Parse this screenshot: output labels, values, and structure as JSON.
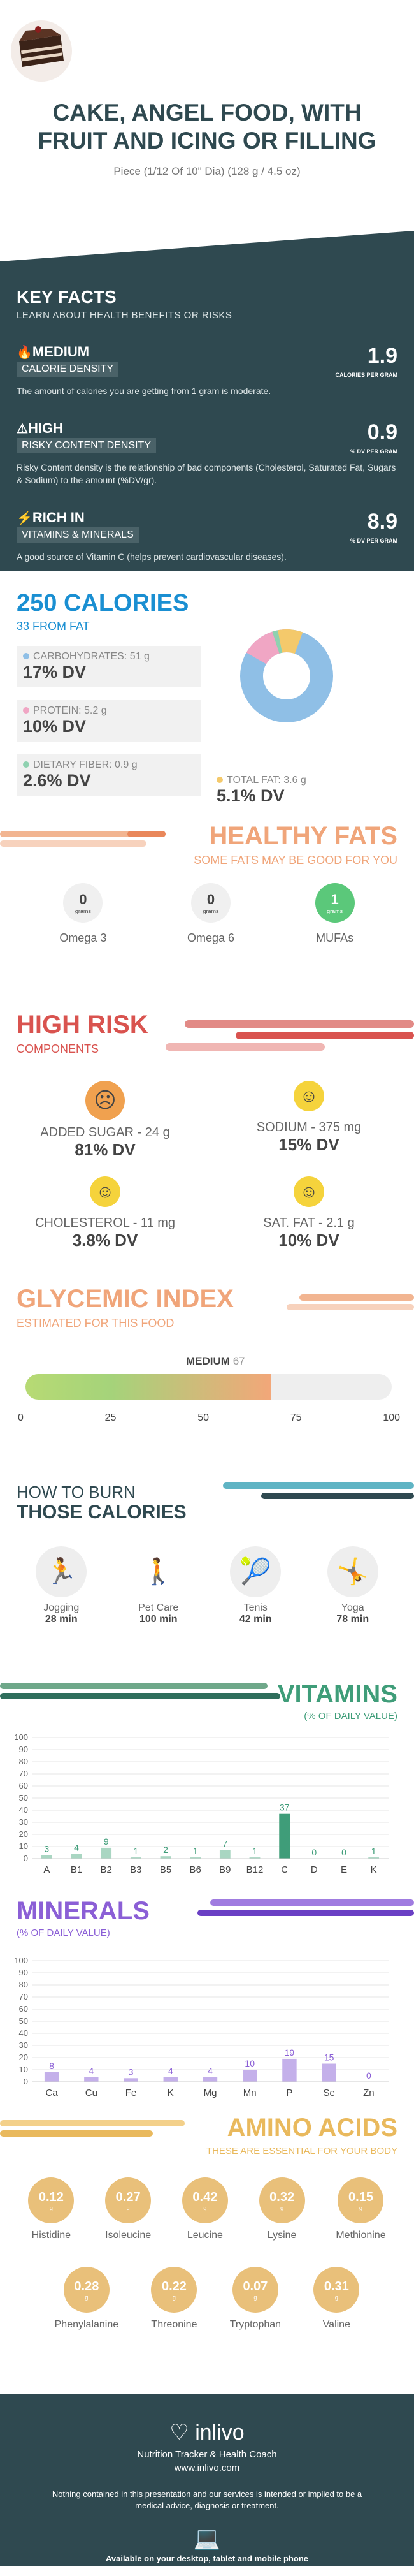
{
  "header": {
    "title": "CAKE, ANGEL FOOD, WITH FRUIT AND ICING OR FILLING",
    "serving": "Piece (1/12 Of 10\" Dia) (128 g / 4.5 oz)"
  },
  "key_facts": {
    "title": "KEY FACTS",
    "subtitle": "LEARN ABOUT HEALTH BENEFITS OR RISKS",
    "items": [
      {
        "level": "MEDIUM",
        "label": "CALORIE DENSITY",
        "value": "1.9",
        "unit": "CALORIES PER GRAM",
        "desc": "The amount of calories you are getting from 1 gram is moderate."
      },
      {
        "level": "HIGH",
        "label": "RISKY CONTENT DENSITY",
        "value": "0.9",
        "unit": "% DV PER GRAM",
        "desc": "Risky Content density is the relationship of bad components (Cholesterol, Saturated Fat, Sugars & Sodium) to the amount (%DV/gr)."
      },
      {
        "level": "RICH  IN",
        "label": "VITAMINS & MINERALS",
        "value": "8.9",
        "unit": "% DV PER GRAM",
        "desc": "A good source of Vitamin C (helps prevent cardiovascular diseases)."
      }
    ]
  },
  "calories": {
    "title": "250 CALORIES",
    "subtitle": "33 FROM FAT",
    "items": [
      {
        "label": "CARBOHYDRATES: 51 g",
        "dv": "17% DV",
        "color": "#8fbfe6"
      },
      {
        "label": "PROTEIN: 5.2 g",
        "dv": "10% DV",
        "color": "#f0a6c4"
      },
      {
        "label": "DIETARY FIBER: 0.9 g",
        "dv": "2.6% DV",
        "color": "#8fd1b0"
      },
      {
        "label": "TOTAL FAT: 3.6 g",
        "dv": "5.1% DV",
        "color": "#f4c96b"
      }
    ]
  },
  "healthy_fats": {
    "title": "HEALTHY FATS",
    "subtitle": "SOME FATS MAY BE GOOD FOR YOU",
    "unit": "grams",
    "items": [
      {
        "name": "Omega 3",
        "value": "0"
      },
      {
        "name": "Omega 6",
        "value": "0"
      },
      {
        "name": "MUFAs",
        "value": "1"
      }
    ]
  },
  "high_risk": {
    "title": "HIGH RISK",
    "subtitle": "COMPONENTS",
    "items": [
      {
        "label": "ADDED SUGAR - 24 g",
        "dv": "81% DV"
      },
      {
        "label": "SODIUM - 375 mg",
        "dv": "15% DV"
      },
      {
        "label": "CHOLESTEROL - 11 mg",
        "dv": "3.8% DV"
      },
      {
        "label": "SAT. FAT - 2.1 g",
        "dv": "10% DV"
      }
    ]
  },
  "glycemic": {
    "title": "GLYCEMIC INDEX",
    "subtitle": "ESTIMATED FOR THIS FOOD",
    "level": "MEDIUM",
    "value": "67",
    "ticks": [
      "0",
      "25",
      "50",
      "75",
      "100"
    ]
  },
  "burn": {
    "title1": "HOW TO BURN",
    "title2": "THOSE CALORIES",
    "items": [
      {
        "name": "Jogging",
        "time": "28 min"
      },
      {
        "name": "Pet Care",
        "time": "100 min"
      },
      {
        "name": "Tenis",
        "time": "42 min"
      },
      {
        "name": "Yoga",
        "time": "78 min"
      }
    ]
  },
  "vitamins": {
    "title": "VITAMINS",
    "subtitle": "(% OF DAILY VALUE)"
  },
  "minerals": {
    "title": "MINERALS",
    "subtitle": "(% OF DAILY VALUE)"
  },
  "chart_data": [
    {
      "type": "bar",
      "title": "VITAMINS",
      "categories": [
        "A",
        "B1",
        "B2",
        "B3",
        "B5",
        "B6",
        "B9",
        "B12",
        "C",
        "D",
        "E",
        "K"
      ],
      "values": [
        3,
        4,
        9,
        1,
        2,
        1,
        7,
        1,
        37,
        0,
        0,
        1
      ],
      "ylim": [
        0,
        100
      ],
      "yticks": [
        0,
        10,
        20,
        30,
        40,
        50,
        60,
        70,
        80,
        90,
        100
      ]
    },
    {
      "type": "bar",
      "title": "MINERALS",
      "categories": [
        "Ca",
        "Cu",
        "Fe",
        "K",
        "Mg",
        "Mn",
        "P",
        "Se",
        "Zn"
      ],
      "values": [
        8,
        4,
        3,
        4,
        4,
        10,
        19,
        15,
        0
      ],
      "ylim": [
        0,
        100
      ],
      "yticks": [
        0,
        10,
        20,
        30,
        40,
        50,
        60,
        70,
        80,
        90,
        100
      ]
    }
  ],
  "amino": {
    "title": "AMINO ACIDS",
    "subtitle": "THESE ARE ESSENTIAL FOR YOUR BODY",
    "unit": "g",
    "row1": [
      {
        "name": "Histidine",
        "value": "0.12"
      },
      {
        "name": "Isoleucine",
        "value": "0.27"
      },
      {
        "name": "Leucine",
        "value": "0.42"
      },
      {
        "name": "Lysine",
        "value": "0.32"
      },
      {
        "name": "Methionine",
        "value": "0.15"
      }
    ],
    "row2": [
      {
        "name": "Phenylalanine",
        "value": "0.28"
      },
      {
        "name": "Threonine",
        "value": "0.22"
      },
      {
        "name": "Tryptophan",
        "value": "0.07"
      },
      {
        "name": "Valine",
        "value": "0.31"
      }
    ]
  },
  "footer": {
    "brand": "inlivo",
    "tagline": "Nutrition Tracker & Health Coach",
    "url": "www.inlivo.com",
    "disclaimer": "Nothing contained in this presentation and our services is intended or implied to be a medical advice, diagnosis or treatment.",
    "available": "Available on your desktop, tablet and mobile phone"
  }
}
